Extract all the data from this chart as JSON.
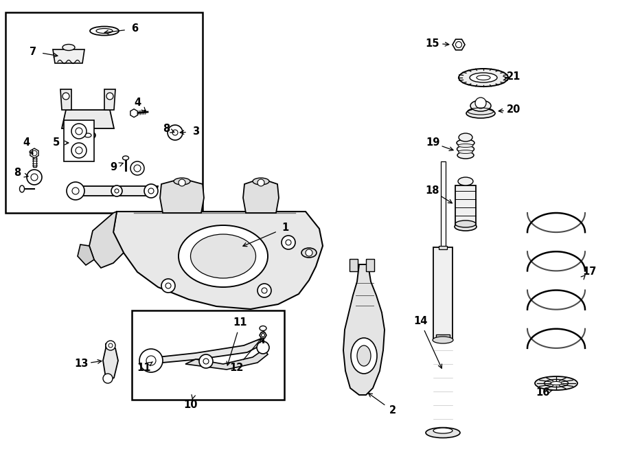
{
  "bg_color": "#ffffff",
  "fig_width": 9.0,
  "fig_height": 6.61,
  "dpi": 100
}
